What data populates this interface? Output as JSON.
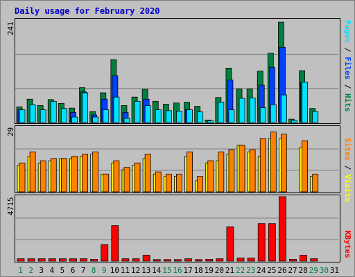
{
  "title": "Daily usage for February 2020",
  "panels": {
    "top": {
      "ymax_label": "241",
      "ymax": 241
    },
    "middle": {
      "ymax_label": "29",
      "ymax": 29
    },
    "bottom": {
      "ymax_label": "4715",
      "ymax": 4715
    }
  },
  "legend": {
    "pages": "Pages",
    "files": "Files",
    "hits": "Hits",
    "sites": "Sites",
    "visits": "Visits",
    "kbytes": "KBytes",
    "sep": " / "
  },
  "colors": {
    "hits": "#008040",
    "files": "#0040ff",
    "pages": "#00e0ff",
    "visits": "#ffff00",
    "sites": "#ff8000",
    "kbytes": "#ff0000",
    "weekday_label": "#000000",
    "weekend_label": "#008040"
  },
  "chart_data": {
    "type": "bar",
    "days": [
      "1",
      "2",
      "3",
      "4",
      "5",
      "6",
      "7",
      "8",
      "9",
      "10",
      "11",
      "12",
      "13",
      "14",
      "15",
      "16",
      "17",
      "18",
      "19",
      "20",
      "21",
      "22",
      "23",
      "24",
      "25",
      "26",
      "27",
      "28",
      "29",
      "30",
      "31"
    ],
    "weekend_days": [
      "1",
      "2",
      "8",
      "9",
      "15",
      "16",
      "22",
      "23",
      "29",
      "30"
    ],
    "series": [
      {
        "name": "Hits",
        "values": [
          37,
          55,
          40,
          54,
          45,
          34,
          82,
          26,
          70,
          148,
          40,
          60,
          78,
          50,
          43,
          46,
          48,
          38,
          6,
          59,
          128,
          79,
          79,
          121,
          163,
          236,
          8,
          122,
          33,
          0,
          0
        ]
      },
      {
        "name": "Files",
        "values": [
          30,
          0,
          0,
          0,
          0,
          24,
          72,
          18,
          55,
          110,
          24,
          0,
          55,
          0,
          0,
          0,
          30,
          0,
          0,
          0,
          100,
          0,
          0,
          88,
          130,
          177,
          0,
          95,
          0,
          0,
          0
        ]
      },
      {
        "name": "Pages",
        "values": [
          30,
          42,
          30,
          50,
          33,
          13,
          70,
          13,
          30,
          60,
          10,
          50,
          40,
          30,
          28,
          27,
          30,
          25,
          4,
          48,
          30,
          57,
          58,
          35,
          42,
          65,
          5,
          95,
          26,
          0,
          0
        ]
      },
      {
        "name": "Sites",
        "values": [
          13,
          18,
          14,
          15,
          15,
          16,
          17,
          18,
          8,
          14,
          11,
          13,
          17,
          9,
          8,
          8,
          18,
          7,
          14,
          18,
          19,
          21,
          19,
          24,
          27,
          26,
          0,
          23,
          8,
          0,
          0
        ]
      },
      {
        "name": "Visits",
        "values": [
          12,
          16,
          13,
          14,
          15,
          15,
          16,
          17,
          8,
          13,
          10,
          12,
          15,
          8,
          7,
          7,
          16,
          5,
          13,
          14,
          17,
          21,
          18,
          16,
          24,
          24,
          0,
          20,
          7,
          0,
          0
        ]
      },
      {
        "name": "KBytes",
        "values": [
          170,
          170,
          170,
          170,
          170,
          170,
          170,
          130,
          1200,
          2600,
          170,
          170,
          430,
          110,
          110,
          110,
          170,
          110,
          130,
          170,
          2500,
          220,
          220,
          2750,
          2750,
          4715,
          130,
          430,
          170,
          0,
          0
        ]
      }
    ],
    "ylim": [
      [
        0,
        241
      ],
      [
        0,
        29
      ],
      [
        0,
        4715
      ]
    ]
  }
}
